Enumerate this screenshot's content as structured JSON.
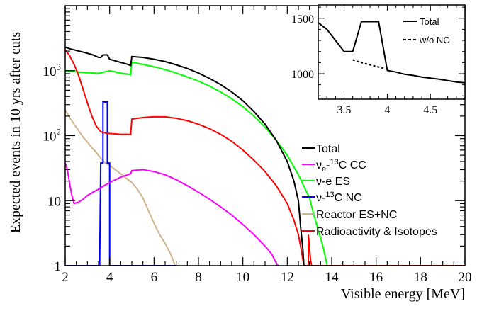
{
  "chart_data": [
    {
      "type": "line",
      "xlabel": "Visible energy [MeV]",
      "ylabel": "Expected events in 10 yrs after cuts",
      "xlim": [
        2,
        20
      ],
      "ylim": [
        1,
        10000
      ],
      "yscale": "log",
      "x_ticks": [
        "2",
        "4",
        "6",
        "8",
        "10",
        "12",
        "14",
        "16",
        "18",
        "20"
      ],
      "y_ticks": [
        {
          "value": 1,
          "label": "1"
        },
        {
          "value": 10,
          "label": "10"
        },
        {
          "value": 100,
          "label": "10",
          "exp": "2"
        },
        {
          "value": 1000,
          "label": "10",
          "exp": "3"
        }
      ],
      "legend_position": "right",
      "series": [
        {
          "key": "total",
          "name": "Total",
          "color": "#000000",
          "points": [
            [
              2.0,
              2300
            ],
            [
              2.25,
              2150
            ],
            [
              2.5,
              2050
            ],
            [
              2.75,
              1950
            ],
            [
              3.0,
              1850
            ],
            [
              3.25,
              1750
            ],
            [
              3.5,
              1600
            ],
            [
              3.6,
              1600
            ],
            [
              3.7,
              1750
            ],
            [
              3.9,
              1750
            ],
            [
              4.0,
              1500
            ],
            [
              4.25,
              1420
            ],
            [
              4.5,
              1340
            ],
            [
              4.75,
              1270
            ],
            [
              4.95,
              1200
            ],
            [
              5.0,
              1650
            ],
            [
              5.5,
              1600
            ],
            [
              6.0,
              1500
            ],
            [
              6.5,
              1380
            ],
            [
              7.0,
              1230
            ],
            [
              7.5,
              1080
            ],
            [
              8.0,
              920
            ],
            [
              8.5,
              760
            ],
            [
              9.0,
              610
            ],
            [
              9.5,
              470
            ],
            [
              10.0,
              345
            ],
            [
              10.5,
              235
            ],
            [
              11.0,
              150
            ],
            [
              11.5,
              85
            ],
            [
              12.0,
              40
            ],
            [
              12.3,
              20
            ],
            [
              12.5,
              10
            ],
            [
              12.6,
              4
            ],
            [
              12.7,
              1.8
            ],
            [
              12.75,
              1
            ]
          ]
        },
        {
          "key": "nue_cc",
          "name_parts": [
            "ν",
            "e",
            "-",
            "13",
            "C CC"
          ],
          "color": "#ff00ff",
          "points": [
            [
              2.0,
              38
            ],
            [
              2.1,
              30
            ],
            [
              2.2,
              18
            ],
            [
              2.3,
              12
            ],
            [
              2.4,
              9
            ],
            [
              2.6,
              9.5
            ],
            [
              2.8,
              10.5
            ],
            [
              3.0,
              12
            ],
            [
              3.25,
              13.5
            ],
            [
              3.5,
              15
            ],
            [
              3.75,
              17
            ],
            [
              4.0,
              19
            ],
            [
              4.5,
              23
            ],
            [
              4.95,
              26
            ],
            [
              5.0,
              29
            ],
            [
              5.5,
              30
            ],
            [
              6.0,
              28
            ],
            [
              6.5,
              25
            ],
            [
              7.0,
              21
            ],
            [
              7.5,
              17
            ],
            [
              8.0,
              13.5
            ],
            [
              8.5,
              10.5
            ],
            [
              9.0,
              8
            ],
            [
              9.5,
              6
            ],
            [
              10.0,
              4.3
            ],
            [
              10.5,
              3
            ],
            [
              11.0,
              2
            ],
            [
              11.3,
              1.5
            ],
            [
              11.5,
              1.1
            ],
            [
              11.6,
              1
            ]
          ]
        },
        {
          "key": "nu_e_es",
          "name": "ν-e ES",
          "color": "#00ff00",
          "points": [
            [
              2.0,
              1000
            ],
            [
              2.5,
              960
            ],
            [
              3.0,
              930
            ],
            [
              3.5,
              910
            ],
            [
              4.0,
              1000
            ],
            [
              4.5,
              920
            ],
            [
              4.95,
              870
            ],
            [
              5.0,
              1350
            ],
            [
              5.5,
              1250
            ],
            [
              6.0,
              1150
            ],
            [
              6.5,
              1040
            ],
            [
              7.0,
              920
            ],
            [
              7.5,
              800
            ],
            [
              8.0,
              690
            ],
            [
              8.5,
              580
            ],
            [
              9.0,
              470
            ],
            [
              9.5,
              370
            ],
            [
              10.0,
              280
            ],
            [
              10.5,
              200
            ],
            [
              11.0,
              135
            ],
            [
              11.5,
              85
            ],
            [
              12.0,
              50
            ],
            [
              12.5,
              25
            ],
            [
              13.0,
              11
            ],
            [
              13.2,
              6
            ],
            [
              13.4,
              3.5
            ],
            [
              13.6,
              2
            ],
            [
              13.8,
              1
            ]
          ]
        },
        {
          "key": "nu_c13_nc",
          "name_parts": [
            "ν-",
            "13",
            "C NC"
          ],
          "color": "#0000ff",
          "points": [
            [
              2.0,
              1
            ],
            [
              3.55,
              1
            ],
            [
              3.6,
              38
            ],
            [
              3.7,
              38
            ],
            [
              3.7,
              330
            ],
            [
              3.9,
              330
            ],
            [
              3.9,
              38
            ],
            [
              4.0,
              38
            ],
            [
              4.0,
              1
            ],
            [
              7.0,
              1
            ]
          ]
        },
        {
          "key": "reactor",
          "name": "Reactor ES+NC",
          "color": "#d2b48c",
          "points": [
            [
              2.0,
              250
            ],
            [
              2.2,
              190
            ],
            [
              2.4,
              150
            ],
            [
              2.6,
              120
            ],
            [
              2.8,
              95
            ],
            [
              3.0,
              80
            ],
            [
              3.2,
              65
            ],
            [
              3.4,
              55
            ],
            [
              3.6,
              45
            ],
            [
              3.8,
              38
            ],
            [
              4.0,
              35
            ],
            [
              4.25,
              30
            ],
            [
              4.5,
              26
            ],
            [
              4.75,
              22
            ],
            [
              5.0,
              19
            ],
            [
              5.25,
              15
            ],
            [
              5.5,
              11
            ],
            [
              5.75,
              7
            ],
            [
              6.0,
              4.5
            ],
            [
              6.25,
              3
            ],
            [
              6.5,
              2.2
            ],
            [
              6.75,
              1.5
            ],
            [
              6.95,
              1
            ]
          ]
        },
        {
          "key": "radio",
          "name": "Radioactivity & Isotopes",
          "color": "#ff0000",
          "points": [
            [
              2.0,
              2100
            ],
            [
              2.2,
              1700
            ],
            [
              2.4,
              1250
            ],
            [
              2.6,
              850
            ],
            [
              2.8,
              520
            ],
            [
              3.0,
              320
            ],
            [
              3.2,
              200
            ],
            [
              3.4,
              140
            ],
            [
              3.6,
              115
            ],
            [
              3.8,
              110
            ],
            [
              4.0,
              108
            ],
            [
              4.5,
              105
            ],
            [
              4.95,
              105
            ],
            [
              5.0,
              180
            ],
            [
              5.5,
              190
            ],
            [
              6.0,
              195
            ],
            [
              6.5,
              195
            ],
            [
              7.0,
              185
            ],
            [
              7.5,
              170
            ],
            [
              8.0,
              150
            ],
            [
              8.5,
              128
            ],
            [
              9.0,
              105
            ],
            [
              9.5,
              82
            ],
            [
              10.0,
              60
            ],
            [
              10.5,
              42
            ],
            [
              11.0,
              28
            ],
            [
              11.5,
              17
            ],
            [
              12.0,
              9
            ],
            [
              12.3,
              5
            ],
            [
              12.5,
              3
            ],
            [
              12.6,
              2
            ],
            [
              12.75,
              1
            ],
            [
              12.95,
              1
            ],
            [
              12.95,
              3
            ],
            [
              13.05,
              1.2
            ],
            [
              13.1,
              1
            ],
            [
              20.0,
              1
            ]
          ]
        }
      ]
    },
    {
      "type": "line",
      "inset": true,
      "xlim": [
        3.2,
        4.9
      ],
      "ylim": [
        770,
        1620
      ],
      "x_ticks": [
        "3.5",
        "4",
        "4.5"
      ],
      "y_ticks": [
        "1000",
        "1500"
      ],
      "legend_position": "top-right",
      "series": [
        {
          "key": "total",
          "name": "Total",
          "style": "solid",
          "points": [
            [
              3.2,
              1460
            ],
            [
              3.3,
              1400
            ],
            [
              3.4,
              1300
            ],
            [
              3.5,
              1200
            ],
            [
              3.6,
              1200
            ],
            [
              3.7,
              1470
            ],
            [
              3.9,
              1470
            ],
            [
              4.0,
              1030
            ],
            [
              4.1,
              1015
            ],
            [
              4.2,
              995
            ],
            [
              4.3,
              985
            ],
            [
              4.4,
              970
            ],
            [
              4.5,
              960
            ],
            [
              4.6,
              950
            ],
            [
              4.7,
              938
            ],
            [
              4.8,
              925
            ],
            [
              4.9,
              918
            ]
          ]
        },
        {
          "key": "without_nc",
          "name": "w/o NC",
          "style": "dashed",
          "points": [
            [
              3.6,
              1125
            ],
            [
              3.7,
              1100
            ],
            [
              3.8,
              1080
            ],
            [
              3.9,
              1060
            ],
            [
              4.0,
              1040
            ]
          ]
        }
      ]
    }
  ]
}
